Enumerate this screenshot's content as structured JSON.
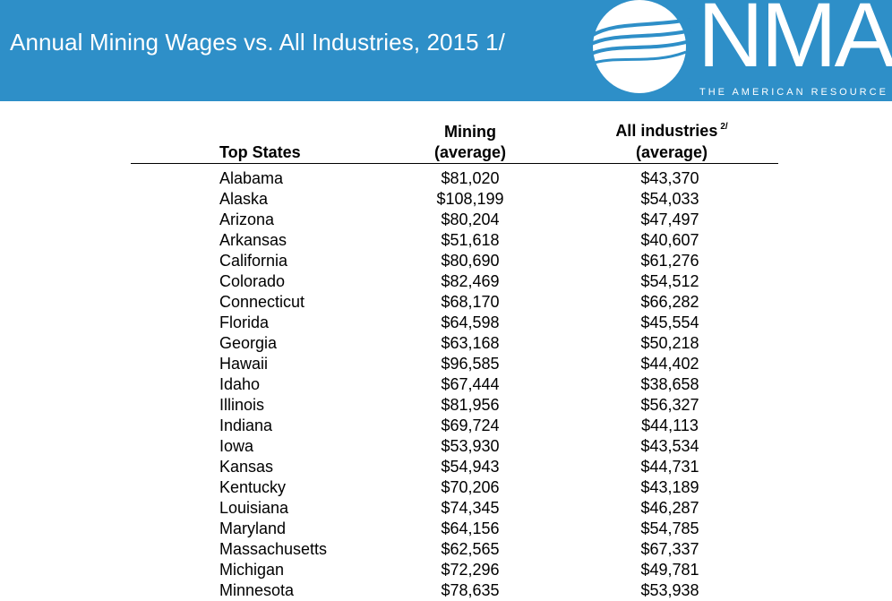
{
  "banner": {
    "title": "Annual Mining Wages vs. All Industries, 2015 1/",
    "logo_text": "NMA",
    "logo_tagline": "THE AMERICAN RESOURCE",
    "logo_icon": "globe-wave-icon",
    "color": "#2e8fc8"
  },
  "table": {
    "headers": {
      "state": "Top States",
      "mining_line1": "Mining",
      "mining_line2": "(average)",
      "all_line1": "All industries",
      "all_footnote": "2/",
      "all_line2": "(average)"
    },
    "rows": [
      {
        "state": "Alabama",
        "mining": "$81,020",
        "all": "$43,370"
      },
      {
        "state": "Alaska",
        "mining": "$108,199",
        "all": "$54,033"
      },
      {
        "state": "Arizona",
        "mining": "$80,204",
        "all": "$47,497"
      },
      {
        "state": "Arkansas",
        "mining": "$51,618",
        "all": "$40,607"
      },
      {
        "state": "California",
        "mining": "$80,690",
        "all": "$61,276"
      },
      {
        "state": "Colorado",
        "mining": "$82,469",
        "all": "$54,512"
      },
      {
        "state": "Connecticut",
        "mining": "$68,170",
        "all": "$66,282"
      },
      {
        "state": "Florida",
        "mining": "$64,598",
        "all": "$45,554"
      },
      {
        "state": "Georgia",
        "mining": "$63,168",
        "all": "$50,218"
      },
      {
        "state": "Hawaii",
        "mining": "$96,585",
        "all": "$44,402"
      },
      {
        "state": "Idaho",
        "mining": "$67,444",
        "all": "$38,658"
      },
      {
        "state": "Illinois",
        "mining": "$81,956",
        "all": "$56,327"
      },
      {
        "state": "Indiana",
        "mining": "$69,724",
        "all": "$44,113"
      },
      {
        "state": "Iowa",
        "mining": "$53,930",
        "all": "$43,534"
      },
      {
        "state": "Kansas",
        "mining": "$54,943",
        "all": "$44,731"
      },
      {
        "state": "Kentucky",
        "mining": "$70,206",
        "all": "$43,189"
      },
      {
        "state": "Louisiana",
        "mining": "$74,345",
        "all": "$46,287"
      },
      {
        "state": "Maryland",
        "mining": "$64,156",
        "all": "$54,785"
      },
      {
        "state": "Massachusetts",
        "mining": "$62,565",
        "all": "$67,337"
      },
      {
        "state": "Michigan",
        "mining": "$72,296",
        "all": "$49,781"
      },
      {
        "state": "Minnesota",
        "mining": "$78,635",
        "all": "$53,938"
      }
    ]
  }
}
